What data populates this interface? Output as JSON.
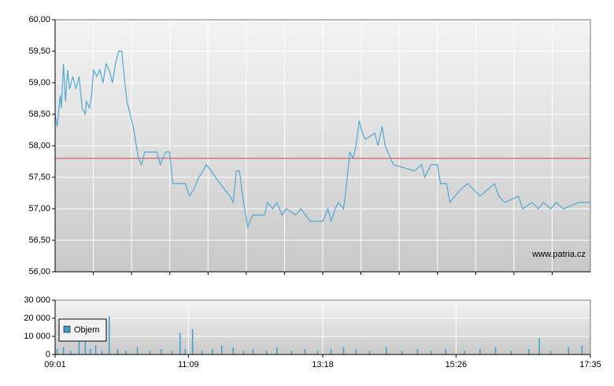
{
  "chart_data": [
    {
      "type": "line",
      "color": "#4fa9d2",
      "x": [
        "09:01",
        "09:03",
        "09:06",
        "09:07",
        "09:09",
        "09:11",
        "09:13",
        "09:15",
        "09:18",
        "09:21",
        "09:24",
        "09:27",
        "09:30",
        "09:31",
        "09:34",
        "09:36",
        "09:38",
        "09:41",
        "09:44",
        "09:47",
        "09:50",
        "09:53",
        "09:56",
        "09:59",
        "10:02",
        "10:05",
        "10:08",
        "10:10",
        "10:13",
        "10:16",
        "10:18",
        "10:21",
        "10:24",
        "10:27",
        "10:39",
        "10:42",
        "10:47",
        "10:51",
        "10:54",
        "11:06",
        "11:10",
        "11:14",
        "11:19",
        "11:23",
        "11:26",
        "11:31",
        "11:35",
        "11:44",
        "11:49",
        "11:52",
        "11:55",
        "11:58",
        "12:01",
        "12:04",
        "12:06",
        "12:08",
        "12:11",
        "12:22",
        "12:25",
        "12:30",
        "12:34",
        "12:39",
        "12:43",
        "12:52",
        "12:57",
        "13:06",
        "13:18",
        "13:23",
        "13:26",
        "13:30",
        "13:33",
        "13:38",
        "13:41",
        "13:44",
        "13:47",
        "13:50",
        "13:53",
        "13:56",
        "13:59",
        "14:08",
        "14:11",
        "14:15",
        "14:18",
        "14:23",
        "14:26",
        "14:46",
        "14:53",
        "14:56",
        "15:02",
        "15:08",
        "15:11",
        "15:17",
        "15:20",
        "15:25",
        "15:30",
        "15:37",
        "15:49",
        "16:03",
        "16:07",
        "16:13",
        "16:26",
        "16:30",
        "16:39",
        "16:45",
        "16:50",
        "16:57",
        "17:02",
        "17:09",
        "17:24",
        "17:35"
      ],
      "values": [
        58.5,
        58.3,
        58.8,
        58.6,
        59.3,
        58.7,
        59.2,
        58.9,
        59.1,
        58.9,
        59.1,
        58.6,
        58.5,
        58.7,
        58.6,
        58.8,
        59.2,
        59.1,
        59.2,
        59.0,
        59.3,
        59.2,
        59.0,
        59.3,
        59.5,
        59.5,
        59.0,
        58.7,
        58.5,
        58.3,
        58.1,
        57.8,
        57.7,
        57.9,
        57.9,
        57.7,
        57.9,
        57.9,
        57.4,
        57.4,
        57.2,
        57.3,
        57.5,
        57.6,
        57.7,
        57.6,
        57.5,
        57.3,
        57.2,
        57.1,
        57.6,
        57.6,
        57.2,
        56.9,
        56.7,
        56.8,
        56.9,
        56.9,
        57.1,
        57.0,
        57.1,
        56.9,
        57.0,
        56.9,
        57.0,
        56.8,
        56.8,
        57.0,
        56.8,
        57.0,
        57.1,
        57.0,
        57.4,
        57.9,
        57.8,
        58.0,
        58.4,
        58.2,
        58.1,
        58.2,
        58.0,
        58.3,
        58.0,
        57.8,
        57.7,
        57.6,
        57.7,
        57.5,
        57.7,
        57.7,
        57.4,
        57.4,
        57.1,
        57.2,
        57.3,
        57.4,
        57.2,
        57.4,
        57.2,
        57.1,
        57.2,
        57.0,
        57.1,
        57.0,
        57.1,
        57.0,
        57.1,
        57.0,
        57.1,
        57.1
      ],
      "xlim": [
        "09:01",
        "17:35"
      ],
      "ylim": [
        56,
        60
      ],
      "yticks": [
        {
          "value": 56,
          "label": "56,00"
        },
        {
          "value": 56.5,
          "label": "56,50"
        },
        {
          "value": 57,
          "label": "57,00"
        },
        {
          "value": 57.5,
          "label": "57,50"
        },
        {
          "value": 58,
          "label": "58,00"
        },
        {
          "value": 58.5,
          "label": "58,50"
        },
        {
          "value": 59,
          "label": "59,00"
        },
        {
          "value": 59.5,
          "label": "59,50"
        },
        {
          "value": 60,
          "label": "60,00"
        }
      ],
      "reference_line": 57.8,
      "reference_color": "#d04040",
      "annotation": "www.patria.cz",
      "grid": true
    },
    {
      "type": "bar",
      "x": [
        "09:03",
        "09:09",
        "09:16",
        "09:24",
        "09:30",
        "09:35",
        "09:40",
        "09:46",
        "09:53",
        "10:01",
        "10:09",
        "10:20",
        "10:32",
        "10:43",
        "10:53",
        "11:01",
        "11:06",
        "11:13",
        "11:22",
        "11:32",
        "11:41",
        "11:52",
        "12:02",
        "12:11",
        "12:24",
        "12:34",
        "12:48",
        "13:01",
        "13:13",
        "13:26",
        "13:38",
        "13:50",
        "14:03",
        "14:19",
        "14:34",
        "14:49",
        "15:02",
        "15:16",
        "15:34",
        "15:49",
        "16:04",
        "16:19",
        "16:36",
        "16:46",
        "16:57",
        "17:14",
        "17:27"
      ],
      "series": [
        {
          "name": "Objem",
          "color": "#3d9ecb",
          "values": [
            3000,
            4000,
            2000,
            8000,
            17000,
            3000,
            5000,
            2000,
            21000,
            3000,
            2000,
            4000,
            2000,
            3000,
            2000,
            12000,
            3000,
            14000,
            2000,
            3000,
            5000,
            4000,
            2000,
            3000,
            2000,
            4000,
            2000,
            3000,
            2000,
            3000,
            4000,
            3000,
            2000,
            4000,
            2000,
            3000,
            2000,
            3000,
            2000,
            3000,
            4000,
            2000,
            3000,
            9000,
            2000,
            4000,
            5000
          ]
        }
      ],
      "xlim": [
        "09:01",
        "17:35"
      ],
      "xticks": [
        "09:01",
        "11:09",
        "13:18",
        "15:26",
        "17:35"
      ],
      "ylim": [
        0,
        30000
      ],
      "yticks": [
        0,
        {
          "value": 10000,
          "label": "10 000"
        },
        {
          "value": 20000,
          "label": "20 000"
        },
        {
          "value": 30000,
          "label": "30 000"
        }
      ],
      "grid": true
    }
  ]
}
